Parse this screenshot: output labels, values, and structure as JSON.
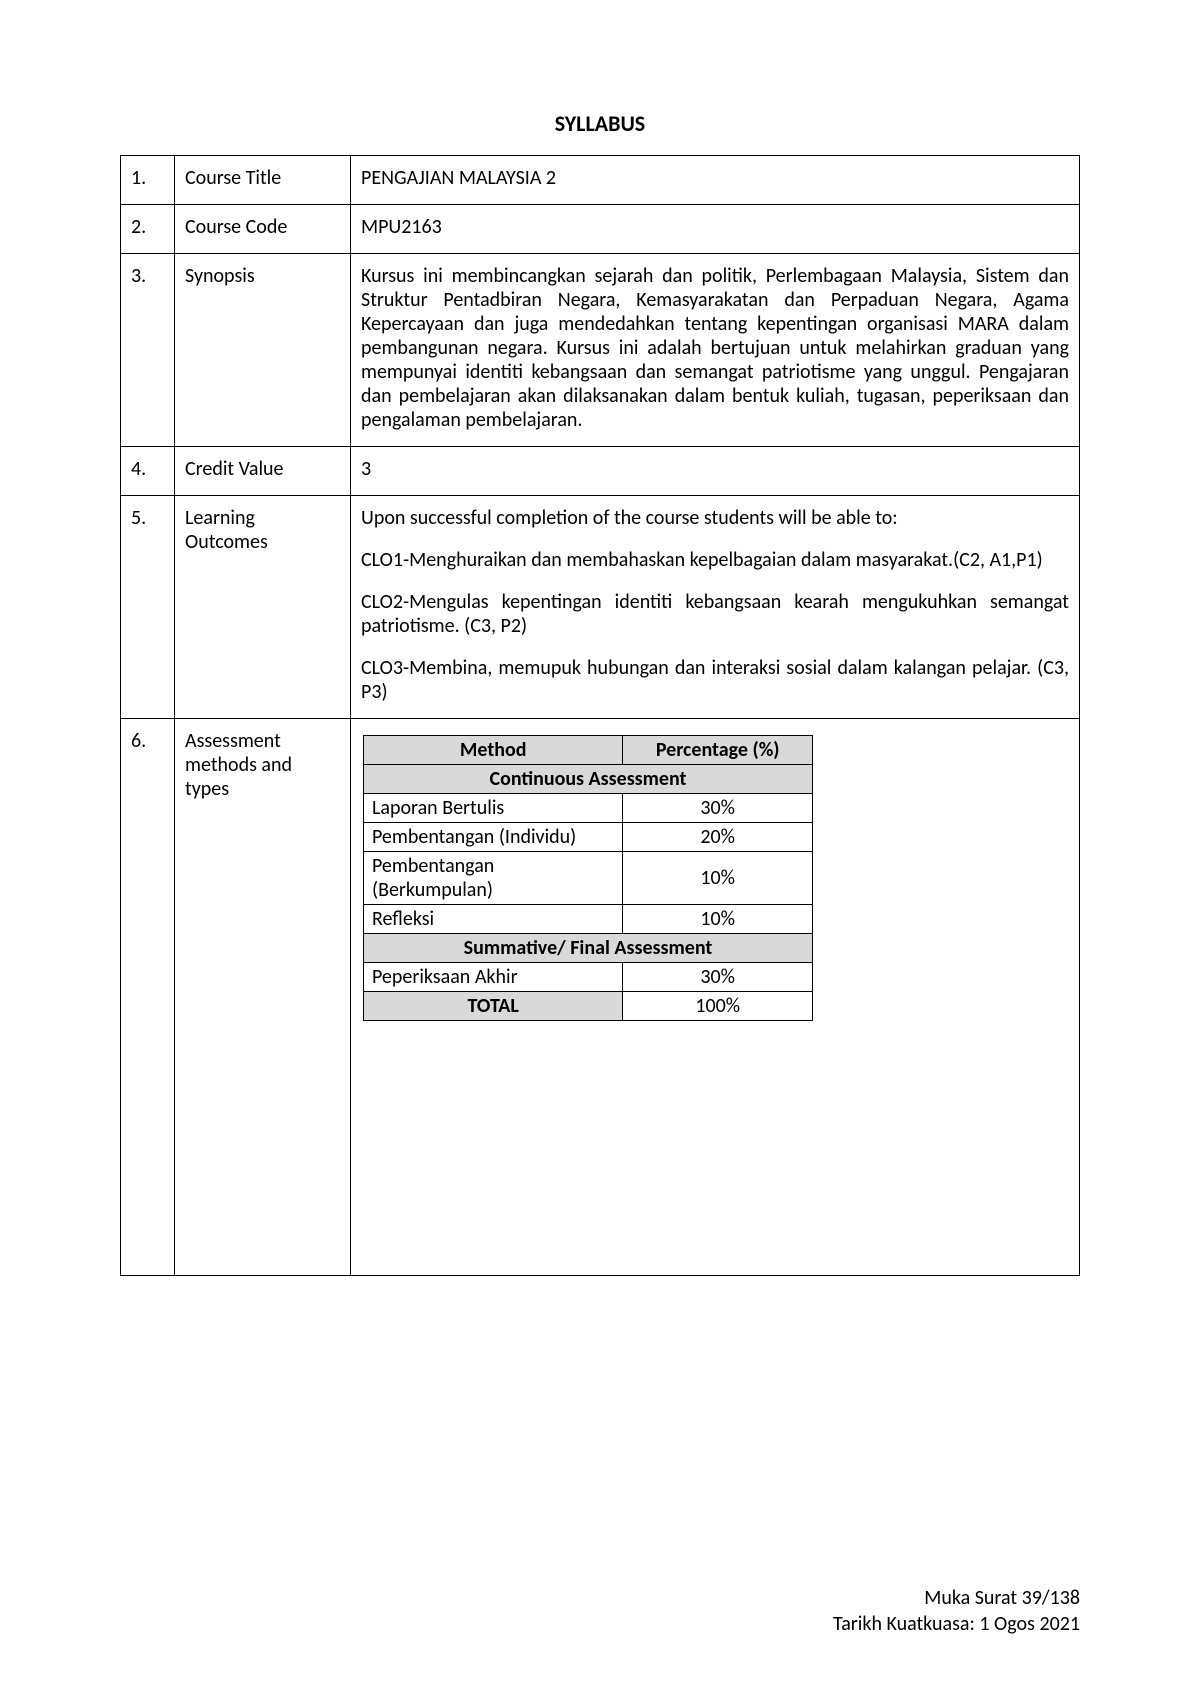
{
  "title": "SYLLABUS",
  "rows": {
    "r1": {
      "num": "1.",
      "label": "Course Title",
      "value": "PENGAJIAN MALAYSIA 2"
    },
    "r2": {
      "num": "2.",
      "label": "Course Code",
      "value": "MPU2163"
    },
    "r3": {
      "num": "3.",
      "label": "Synopsis",
      "value": "Kursus ini membincangkan sejarah dan politik, Perlembagaan Malaysia, Sistem dan Struktur Pentadbiran Negara, Kemasyarakatan dan Perpaduan Negara, Agama Kepercayaan dan juga mendedahkan tentang kepentingan organisasi MARA dalam pembangunan negara. Kursus ini adalah bertujuan untuk melahirkan graduan yang mempunyai identiti kebangsaan dan semangat patriotisme yang unggul. Pengajaran dan pembelajaran akan dilaksanakan dalam bentuk kuliah, tugasan, peperiksaan dan pengalaman pembelajaran."
    },
    "r4": {
      "num": "4.",
      "label": "Credit Value",
      "value": "3"
    },
    "r5": {
      "num": "5.",
      "label": "Learning Outcomes",
      "intro": "Upon successful completion of the course students will be able to:",
      "clo1": "CLO1-Menghuraikan dan membahaskan kepelbagaian dalam masyarakat.(C2, A1,P1)",
      "clo2": "CLO2-Mengulas kepentingan identiti kebangsaan kearah mengukuhkan semangat patriotisme. (C3, P2)",
      "clo3": "CLO3-Membina, memupuk hubungan dan interaksi sosial dalam kalangan pelajar. (C3, P3)"
    },
    "r6": {
      "num": "6.",
      "label": "Assessment methods and types"
    }
  },
  "assessment": {
    "header_method": "Method",
    "header_pct": "Percentage (%)",
    "section_continuous": "Continuous Assessment",
    "section_summative": "Summative/ Final Assessment",
    "rows": {
      "a1": {
        "method": "Laporan Bertulis",
        "pct": "30%"
      },
      "a2": {
        "method": "Pembentangan (Individu)",
        "pct": "20%"
      },
      "a3": {
        "method": "Pembentangan (Berkumpulan)",
        "pct": "10%"
      },
      "a4": {
        "method": "Refleksi",
        "pct": "10%"
      },
      "a5": {
        "method": "Peperiksaan Akhir",
        "pct": "30%"
      }
    },
    "total_label": "TOTAL",
    "total_pct": "100%"
  },
  "footer": {
    "line1": "Muka Surat 39/138",
    "line2": "Tarikh Kuatkuasa: 1 Ogos 2021"
  }
}
